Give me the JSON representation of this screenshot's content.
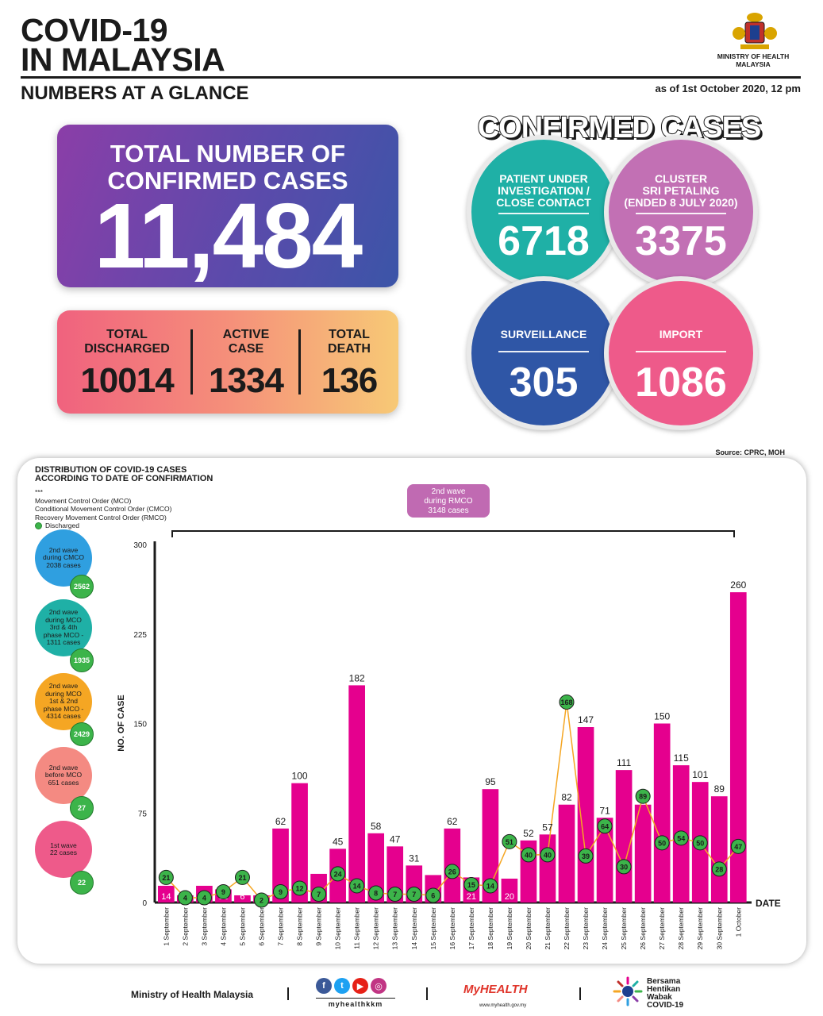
{
  "header": {
    "title": "COVID-19\nIN MALAYSIA",
    "subtitle": "NUMBERS AT A GLANCE",
    "ministry": "MINISTRY OF HEALTH\nMALAYSIA",
    "as_of": "as of 1st October 2020, 12 pm"
  },
  "total": {
    "label": "TOTAL NUMBER OF\nCONFIRMED CASES",
    "value": "11,484"
  },
  "stats": [
    {
      "label": "TOTAL\nDISCHARGED",
      "value": "10014"
    },
    {
      "label": "ACTIVE\nCASE",
      "value": "1334"
    },
    {
      "label": "TOTAL\nDEATH",
      "value": "136"
    }
  ],
  "confirmed": {
    "title": "CONFIRMED CASES",
    "bubbles": [
      {
        "label": "PATIENT UNDER\nINVESTIGATION /\nCLOSE CONTACT",
        "value": "6718",
        "color": "#1fb0a6"
      },
      {
        "label": "CLUSTER\nSRI PETALING\n(ENDED 8 JULY 2020)",
        "value": "3375",
        "color": "#c270b4"
      },
      {
        "label": "SURVEILLANCE",
        "value": "305",
        "color": "#2f56a6"
      },
      {
        "label": "IMPORT",
        "value": "1086",
        "color": "#ee5a8a"
      }
    ]
  },
  "source": "Source: CPRC, MOH",
  "chart_panel": {
    "title": "DISTRIBUTION OF COVID-19 CASES\nACCORDING TO DATE OF CONFIRMATION",
    "stars": "***",
    "legend": [
      "Movement Control Order (MCO)",
      "Conditional Movement Control Order (CMCO)",
      "Recovery Movement Control Order (RMCO)"
    ],
    "legend_discharged": "Discharged",
    "wave_box": "2nd wave\nduring RMCO\n3148 cases",
    "side_waves": [
      {
        "label": "2nd wave\nduring CMCO\n2038 cases",
        "badge": "2562",
        "color": "#2f9fe0"
      },
      {
        "label": "2nd wave\nduring MCO\n3rd & 4th\nphase MCO -\n1311 cases",
        "badge": "1935",
        "color": "#1fb0a6"
      },
      {
        "label": "2nd wave\nduring MCO\n1st & 2nd\nphase MCO -\n4314 cases",
        "badge": "2429",
        "color": "#f5a623"
      },
      {
        "label": "2nd wave\nbefore MCO\n651 cases",
        "badge": "27",
        "color": "#f48a82"
      },
      {
        "label": "1st wave\n22 cases",
        "badge": "22",
        "color": "#ee5a8a"
      }
    ]
  },
  "chart_data": {
    "type": "bar",
    "ylabel": "NO. OF CASE",
    "xlabel": "DATE",
    "ylim": [
      0,
      300
    ],
    "yticks": [
      0,
      75,
      150,
      225,
      300
    ],
    "bar_color": "#e5008e",
    "line_color": "#f5a623",
    "categories": [
      "1 September",
      "2 September",
      "3 September",
      "4 September",
      "5 September",
      "6 September",
      "7 September",
      "8 September",
      "9 September",
      "10 September",
      "11 September",
      "12 September",
      "13 September",
      "14 September",
      "15 September",
      "16 September",
      "17 September",
      "18 September",
      "19 September",
      "20 September",
      "21 September",
      "22 September",
      "23 September",
      "24 September",
      "25 September",
      "26 September",
      "27 September",
      "28 September",
      "29 September",
      "30 September",
      "1 October"
    ],
    "series": [
      {
        "name": "",
        "values": [
          14,
          6,
          14,
          11,
          6,
          6,
          62,
          100,
          24,
          45,
          182,
          58,
          47,
          31,
          23,
          62,
          21,
          95,
          20,
          52,
          57,
          82,
          147,
          71,
          111,
          82,
          150,
          115,
          101,
          89,
          260
        ]
      },
      {
        "name": "Discharged",
        "values": [
          21,
          4,
          4,
          9,
          21,
          2,
          9,
          12,
          7,
          24,
          14,
          8,
          7,
          7,
          6,
          26,
          15,
          14,
          51,
          40,
          40,
          168,
          39,
          64,
          30,
          89,
          50,
          54,
          50,
          28,
          47
        ]
      }
    ]
  },
  "footer": {
    "ministry": "Ministry of Health Malaysia",
    "handle": "myhealthkkm",
    "myhealth": "MyHEALTH",
    "myhealth_url": "www.myhealth.gov.my",
    "bersama": "Bersama\nHentikan\nWabak\nCOVID-19"
  }
}
